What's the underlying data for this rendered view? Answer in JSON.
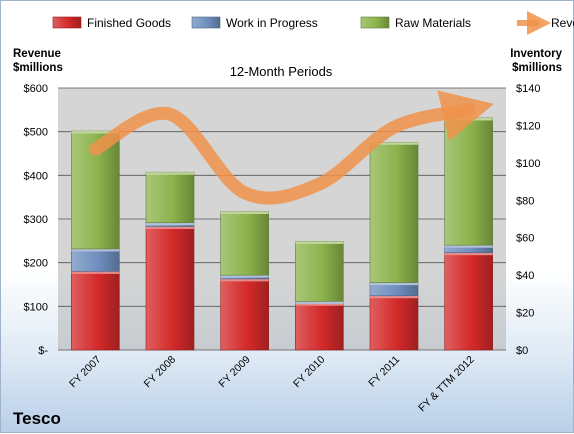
{
  "chart_data": {
    "type": "bar",
    "title": "12-Month Periods",
    "caption": "Tesco",
    "left_axis_label": [
      "Revenue",
      "$millions"
    ],
    "right_axis_label": [
      "Inventory",
      "$millions"
    ],
    "categories": [
      "FY 2007",
      "FY 2008",
      "FY 2009",
      "FY 2010",
      "FY 2011",
      "FY & TTM 2012"
    ],
    "left_ylim": [
      0,
      600
    ],
    "left_ticks": [
      "$-",
      "$100",
      "$200",
      "$300",
      "$400",
      "$500",
      "$600"
    ],
    "right_ylim": [
      0,
      140
    ],
    "right_ticks": [
      "$0",
      "$20",
      "$40",
      "$60",
      "$80",
      "$100",
      "$120",
      "$140"
    ],
    "grid": true,
    "legend_position": "top",
    "stacked_series": [
      {
        "name": "Finished Goods",
        "axis": "right",
        "color": "#d42a2a",
        "values": [
          42,
          66,
          38,
          25,
          29,
          52
        ]
      },
      {
        "name": "Work in Progress",
        "axis": "right",
        "color": "#6f8fbf",
        "values": [
          12,
          2,
          2,
          1,
          7,
          4
        ]
      },
      {
        "name": "Raw Materials",
        "axis": "right",
        "color": "#8cb34c",
        "values": [
          63,
          27,
          34,
          32,
          75,
          68
        ]
      }
    ],
    "line_series": {
      "name": "Revenue",
      "axis": "left",
      "color": "#f0924a",
      "values": [
        460,
        540,
        360,
        380,
        510,
        550
      ]
    }
  }
}
